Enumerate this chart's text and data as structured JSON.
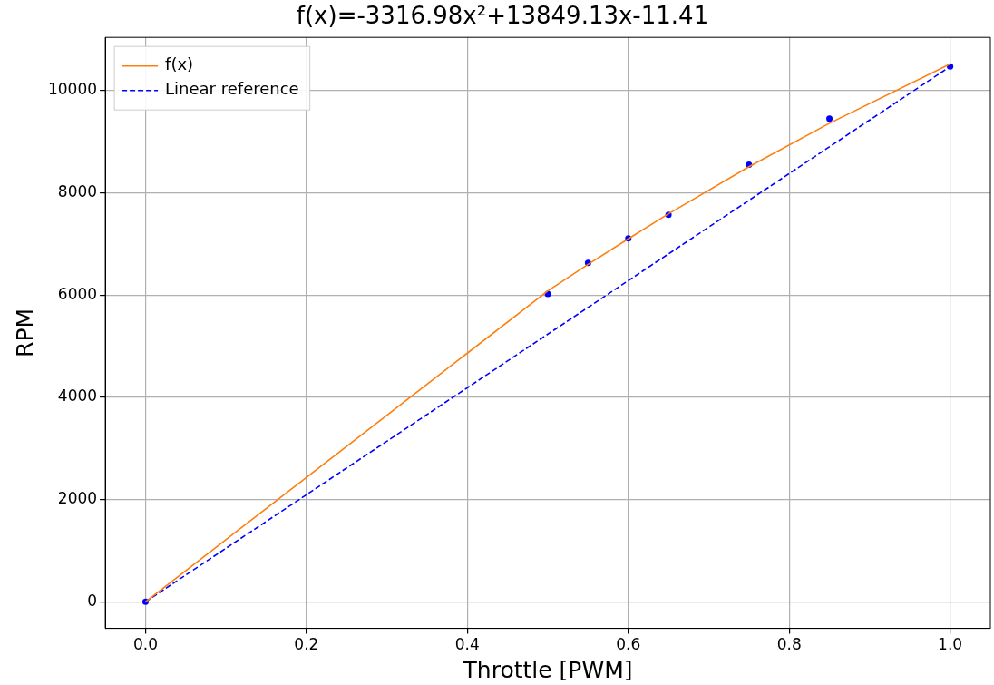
{
  "chart_data": {
    "type": "scatter",
    "title": "f(x)=-3316.98x²+13849.13x-11.41",
    "xlabel": "Throttle [PWM]",
    "ylabel": "RPM",
    "xlim": [
      -0.05,
      1.05
    ],
    "xticks": [
      {
        "value": 0,
        "label": "0.0"
      },
      {
        "value": 0.2,
        "label": "0.2"
      },
      {
        "value": 0.4,
        "label": "0.4"
      },
      {
        "value": 0.6,
        "label": "0.6"
      },
      {
        "value": 0.8,
        "label": "0.8"
      },
      {
        "value": 1,
        "label": "1.0"
      }
    ],
    "ylim": [
      -520,
      11040
    ],
    "yticks": [
      0,
      2000,
      4000,
      6000,
      8000,
      10000
    ],
    "grid": true,
    "legend": "top left",
    "series": [
      {
        "name": "f(x)",
        "type": "line",
        "color": "#ff7f0e",
        "line_style": "solid",
        "marker": "none",
        "x": [
          0,
          0.5,
          0.55,
          0.6,
          0.65,
          0.75,
          0.85,
          1.0
        ],
        "values": [
          0,
          6080,
          6600,
          7100,
          7590,
          8510,
          9360,
          10520
        ]
      },
      {
        "name": "Linear reference",
        "type": "line",
        "color": "#0000ff",
        "line_style": "dashed",
        "marker": "none",
        "x": [
          0,
          1.0
        ],
        "values": [
          0,
          10470
        ]
      },
      {
        "type": "scatter",
        "color": "#0000ff",
        "marker": "circle",
        "x": [
          0,
          0.5,
          0.55,
          0.6,
          0.65,
          0.75,
          0.85,
          1.0
        ],
        "values": [
          0,
          6020,
          6630,
          7110,
          7570,
          8550,
          9450,
          10470
        ]
      }
    ]
  }
}
